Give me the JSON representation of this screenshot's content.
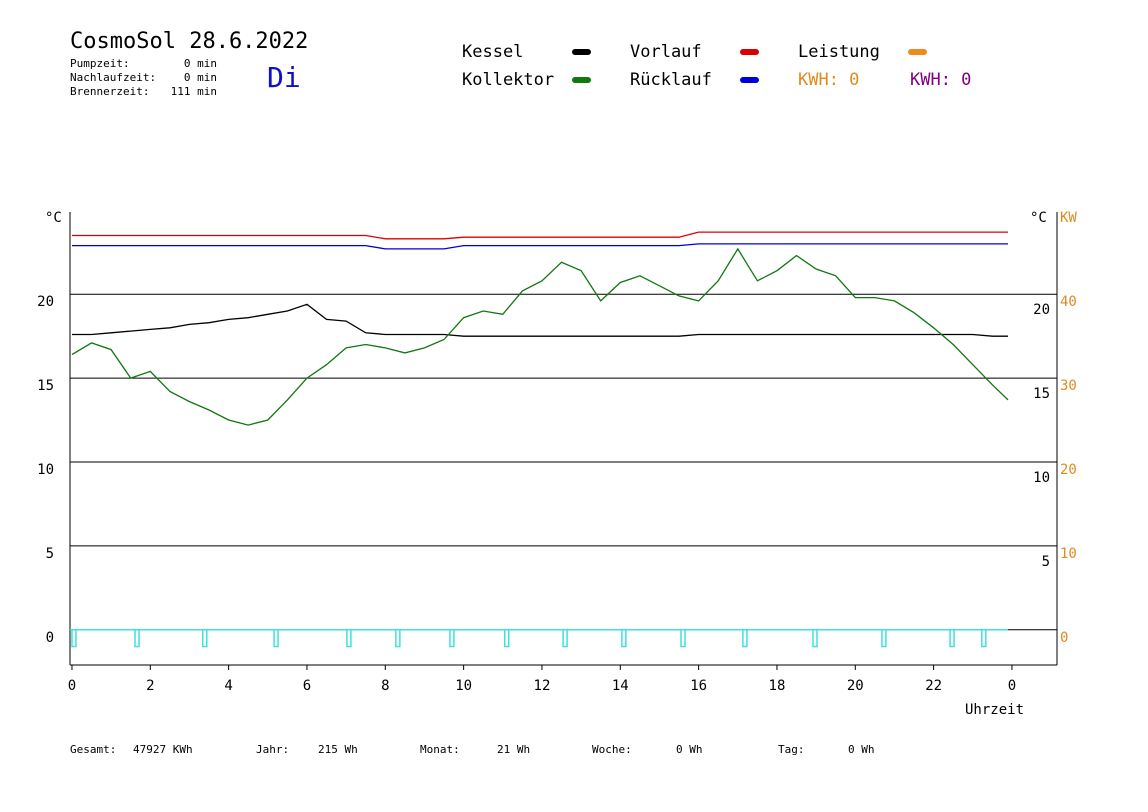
{
  "chart_data": {
    "type": "line",
    "title": "CosmoSol 28.6.2022",
    "weekday": "Di",
    "stats": [
      {
        "label": "Pumpzeit:",
        "value": "0 min"
      },
      {
        "label": "Nachlaufzeit:",
        "value": "0 min"
      },
      {
        "label": "Brennerzeit:",
        "value": "111 min"
      }
    ],
    "kwh_labels": [
      {
        "text": "KWH: 0",
        "color": "#e08a1e"
      },
      {
        "text": "KWH: 0",
        "color": "#800080"
      }
    ],
    "y_unit": "°C",
    "y2_unit": "KW",
    "xlabel": "Uhrzeit",
    "x": [
      0,
      0.5,
      1,
      1.5,
      2,
      2.5,
      3,
      3.5,
      4,
      4.5,
      5,
      5.5,
      6,
      6.5,
      7,
      7.5,
      8,
      8.5,
      9,
      9.5,
      10,
      10.5,
      11,
      11.5,
      12,
      12.5,
      13,
      13.5,
      14,
      14.5,
      15,
      15.5,
      16,
      16.5,
      17,
      17.5,
      18,
      18.5,
      19,
      19.5,
      20,
      20.5,
      21,
      21.5,
      22,
      22.5,
      23,
      23.5,
      23.9
    ],
    "series": [
      {
        "name": "Kessel",
        "color": "#000000",
        "values": [
          17.6,
          17.6,
          17.7,
          17.8,
          17.9,
          18.0,
          18.2,
          18.3,
          18.5,
          18.6,
          18.8,
          19.0,
          19.4,
          18.5,
          18.4,
          17.7,
          17.6,
          17.6,
          17.6,
          17.6,
          17.5,
          17.5,
          17.5,
          17.5,
          17.5,
          17.5,
          17.5,
          17.5,
          17.5,
          17.5,
          17.5,
          17.5,
          17.6,
          17.6,
          17.6,
          17.6,
          17.6,
          17.6,
          17.6,
          17.6,
          17.6,
          17.6,
          17.6,
          17.6,
          17.6,
          17.6,
          17.6,
          17.5,
          17.5
        ]
      },
      {
        "name": "Kollektor",
        "color": "#117711",
        "values": [
          16.4,
          17.1,
          16.7,
          15.0,
          15.4,
          14.2,
          13.6,
          13.1,
          12.5,
          12.2,
          12.5,
          13.7,
          15.0,
          15.8,
          16.8,
          17.0,
          16.8,
          16.5,
          16.8,
          17.3,
          18.6,
          19.0,
          18.8,
          20.2,
          20.8,
          21.9,
          21.4,
          19.6,
          20.7,
          21.1,
          20.5,
          19.9,
          19.6,
          20.8,
          22.7,
          20.8,
          21.4,
          22.3,
          21.5,
          21.1,
          19.8,
          19.8,
          19.6,
          18.9,
          18.0,
          17.0,
          15.8,
          14.6,
          13.7
        ]
      },
      {
        "name": "Vorlauf",
        "color": "#dd0000",
        "values": [
          23.5,
          23.5,
          23.5,
          23.5,
          23.5,
          23.5,
          23.5,
          23.5,
          23.5,
          23.5,
          23.5,
          23.5,
          23.5,
          23.5,
          23.5,
          23.5,
          23.3,
          23.3,
          23.3,
          23.3,
          23.4,
          23.4,
          23.4,
          23.4,
          23.4,
          23.4,
          23.4,
          23.4,
          23.4,
          23.4,
          23.4,
          23.4,
          23.7,
          23.7,
          23.7,
          23.7,
          23.7,
          23.7,
          23.7,
          23.7,
          23.7,
          23.7,
          23.7,
          23.7,
          23.7,
          23.7,
          23.7,
          23.7,
          23.7
        ]
      },
      {
        "name": "Rücklauf",
        "color": "#0000dd",
        "values": [
          22.9,
          22.9,
          22.9,
          22.9,
          22.9,
          22.9,
          22.9,
          22.9,
          22.9,
          22.9,
          22.9,
          22.9,
          22.9,
          22.9,
          22.9,
          22.9,
          22.7,
          22.7,
          22.7,
          22.7,
          22.9,
          22.9,
          22.9,
          22.9,
          22.9,
          22.9,
          22.9,
          22.9,
          22.9,
          22.9,
          22.9,
          22.9,
          23.0,
          23.0,
          23.0,
          23.0,
          23.0,
          23.0,
          23.0,
          23.0,
          23.0,
          23.0,
          23.0,
          23.0,
          23.0,
          23.0,
          23.0,
          23.0,
          23.0
        ]
      },
      {
        "name": "Leistung",
        "color": "#f08a1e",
        "axis": "y2"
      }
    ],
    "pulses": {
      "color": "#40e0e0",
      "depth": -1,
      "x": [
        0,
        1.61,
        3.34,
        5.16,
        7.02,
        8.27,
        9.65,
        11.05,
        12.54,
        14.04,
        15.55,
        17.13,
        18.92,
        20.68,
        22.42,
        23.23
      ]
    },
    "xlim": [
      -0.05,
      25.15
    ],
    "xticks": [
      0,
      2,
      4,
      6,
      8,
      10,
      12,
      14,
      16,
      18,
      20,
      22,
      {
        "value": 24,
        "label": "0"
      }
    ],
    "ylim": [
      -2.1,
      24.9
    ],
    "yticks": [
      0,
      5,
      10,
      15,
      20
    ],
    "yticks_right": [
      5,
      10,
      15,
      20
    ],
    "y2lim": [
      -4.2,
      49.8
    ],
    "y2ticks": [
      0,
      10,
      20,
      30,
      40
    ],
    "grid": true,
    "footer": [
      {
        "label": "Gesamt:",
        "value": "47927 KWh"
      },
      {
        "label": "Jahr:",
        "value": "215 Wh"
      },
      {
        "label": "Monat:",
        "value": "21 Wh"
      },
      {
        "label": "Woche:",
        "value": "0 Wh"
      },
      {
        "label": "Tag:",
        "value": "0 Wh"
      }
    ]
  }
}
